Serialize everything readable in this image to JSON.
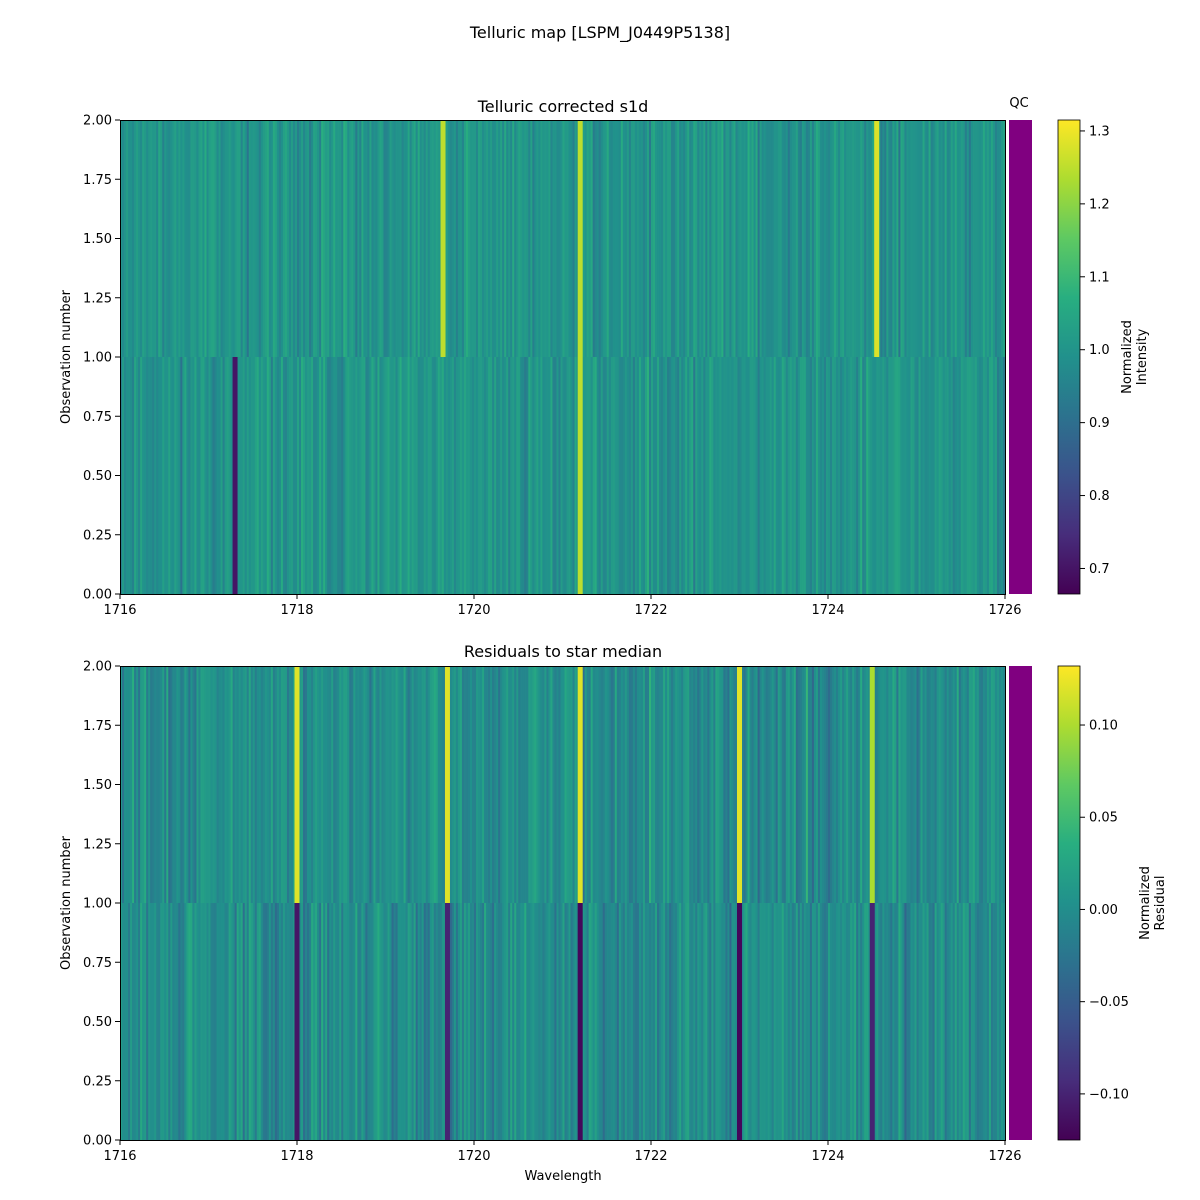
{
  "figure": {
    "suptitle": "Telluric map [LSPM_J0449P5138]"
  },
  "chart_data": [
    {
      "type": "heatmap",
      "title": "Telluric corrected s1d",
      "xlabel": "",
      "ylabel": "Observation number",
      "xlim": [
        1716,
        1726
      ],
      "ylim": [
        0,
        2
      ],
      "x_ticks": [
        "1716",
        "1718",
        "1720",
        "1722",
        "1724",
        "1726"
      ],
      "y_ticks": [
        "0.00",
        "0.25",
        "0.50",
        "0.75",
        "1.00",
        "1.25",
        "1.50",
        "1.75",
        "2.00"
      ],
      "rows": 2,
      "colormap": "viridis",
      "colorbar": {
        "label_line1": "Normalized",
        "label_line2": "Intensity",
        "range": [
          0.665,
          1.315
        ],
        "ticks": [
          "0.7",
          "0.8",
          "0.9",
          "1.0",
          "1.1",
          "1.2",
          "1.3"
        ]
      },
      "qc_label": "QC",
      "qc_color": "#800080",
      "features": [
        {
          "x": 1717.3,
          "row": 0,
          "value": 0.7
        },
        {
          "x": 1719.65,
          "row": 1,
          "value": 1.25
        },
        {
          "x": 1721.2,
          "row": 0,
          "value": 1.25
        },
        {
          "x": 1721.2,
          "row": 1,
          "value": 1.25
        },
        {
          "x": 1724.55,
          "row": 1,
          "value": 1.28
        }
      ]
    },
    {
      "type": "heatmap",
      "title": "Residuals to star median",
      "xlabel": "Wavelength",
      "ylabel": "Observation number",
      "xlim": [
        1716,
        1726
      ],
      "ylim": [
        0,
        2
      ],
      "x_ticks": [
        "1716",
        "1718",
        "1720",
        "1722",
        "1724",
        "1726"
      ],
      "y_ticks": [
        "0.00",
        "0.25",
        "0.50",
        "0.75",
        "1.00",
        "1.25",
        "1.50",
        "1.75",
        "2.00"
      ],
      "rows": 2,
      "colormap": "viridis",
      "colorbar": {
        "label_line1": "Normalized",
        "label_line2": "Residual",
        "range": [
          -0.125,
          0.132
        ],
        "ticks": [
          "0.10",
          "0.05",
          "0.00",
          "−0.05",
          "−0.10"
        ],
        "tick_values": [
          0.1,
          0.05,
          0.0,
          -0.05,
          -0.1
        ]
      },
      "qc_color": "#800080",
      "features": [
        {
          "x": 1718.0,
          "row": 1,
          "value": 0.12
        },
        {
          "x": 1718.0,
          "row": 0,
          "value": -0.11
        },
        {
          "x": 1719.7,
          "row": 1,
          "value": 0.12
        },
        {
          "x": 1719.7,
          "row": 0,
          "value": -0.1
        },
        {
          "x": 1721.2,
          "row": 1,
          "value": 0.12
        },
        {
          "x": 1721.2,
          "row": 0,
          "value": -0.12
        },
        {
          "x": 1723.0,
          "row": 1,
          "value": 0.12
        },
        {
          "x": 1723.0,
          "row": 0,
          "value": -0.12
        },
        {
          "x": 1724.5,
          "row": 1,
          "value": 0.1
        },
        {
          "x": 1724.5,
          "row": 0,
          "value": -0.1
        }
      ]
    }
  ]
}
